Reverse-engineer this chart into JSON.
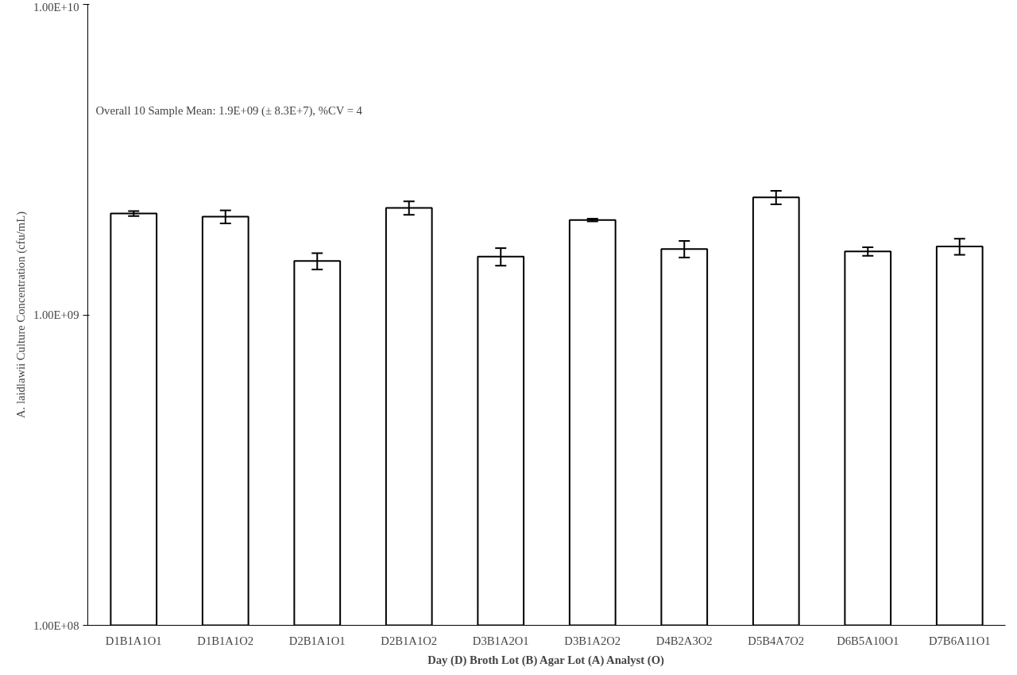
{
  "chart_data": {
    "type": "bar",
    "xlabel": "Day (D) Broth Lot (B) Agar Lot (A) Analyst (O)",
    "ylabel": "A. laidlawii Culture Concentration (cfu/mL)",
    "categories": [
      "D1B1A1O1",
      "D1B1A1O2",
      "D2B1A1O1",
      "D2B1A1O2",
      "D3B1A2O1",
      "D3B1A2O2",
      "D4B2A3O2",
      "D5B4A7O2",
      "D6B5A10O1",
      "D7B6A11O1"
    ],
    "series": [
      {
        "color": "#ffffff",
        "values": [
          2120000000.0,
          2070000000.0,
          1490000000.0,
          2210000000.0,
          1540000000.0,
          2020000000.0,
          1630000000.0,
          2390000000.0,
          1600000000.0,
          1660000000.0
        ],
        "errors": [
          40000000.0,
          100000000.0,
          90000000.0,
          110000000.0,
          100000000.0,
          20000000.0,
          100000000.0,
          120000000.0,
          50000000.0,
          100000000.0
        ]
      }
    ],
    "log": "y",
    "ylim": [
      100000000.0,
      10000000000.0
    ],
    "yticks": [
      {
        "value": 100000000.0,
        "label": "1.00E+08"
      },
      {
        "value": 1000000000.0,
        "label": "1.00E+09"
      },
      {
        "value": 10000000000.0,
        "label": "1.00E+10"
      }
    ],
    "grid": false,
    "annotations": [
      "Overall 10 Sample Mean: 1.9E+09 (± 8.3E+7), %CV = 4"
    ]
  }
}
